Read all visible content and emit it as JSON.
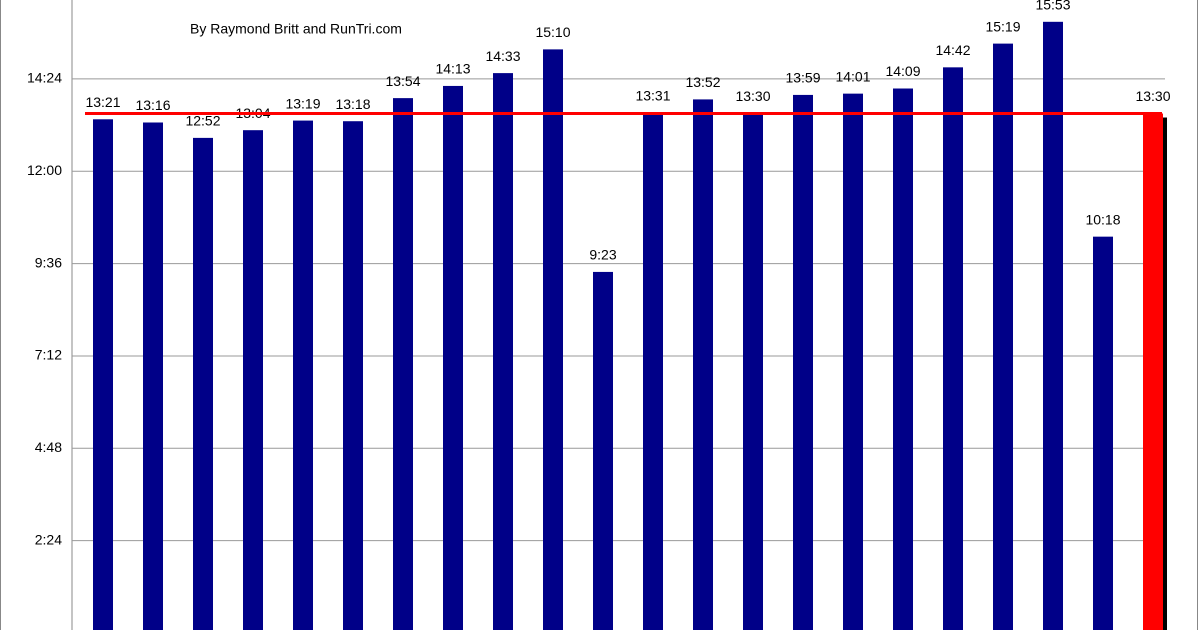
{
  "chart_data": {
    "type": "bar",
    "subtitle": "By Raymond Britt and RunTri.com",
    "categories": [
      null,
      null,
      null,
      null,
      null,
      null,
      null,
      null,
      null,
      null,
      null,
      null,
      null,
      null,
      null,
      null,
      null,
      null,
      null,
      null,
      null,
      null
    ],
    "series": [
      {
        "color": "#000088",
        "colors": [
          "#000088",
          "#000088",
          "#000088",
          "#000088",
          "#000088",
          "#000088",
          "#000088",
          "#000088",
          "#000088",
          "#000088",
          "#000088",
          "#000088",
          "#000088",
          "#000088",
          "#000088",
          "#000088",
          "#000088",
          "#000088",
          "#000088",
          "#000088",
          "#000088",
          "#ff0000"
        ],
        "values": [
          13.35,
          13.2667,
          12.8667,
          13.0667,
          13.3167,
          13.3,
          13.9,
          14.2167,
          14.55,
          15.1667,
          9.3833,
          13.5167,
          13.8667,
          13.5,
          13.9833,
          14.0167,
          14.15,
          14.7,
          15.3167,
          15.8833,
          10.3,
          13.5
        ],
        "value_labels": [
          "13:21",
          "13:16",
          "12:52",
          "13:04",
          "13:19",
          "13:18",
          "13:54",
          "14:13",
          "14:33",
          "15:10",
          "9:23",
          "13:31",
          "13:52",
          "13:30",
          "13:59",
          "14:01",
          "14:09",
          "14:42",
          "15:19",
          "15:53",
          "10:18",
          "13:30"
        ]
      }
    ],
    "reference_line": {
      "value": 13.5,
      "color": "#ff0000"
    },
    "ylim": [
      0,
      16.45
    ],
    "yticks": [
      {
        "value": 2.4,
        "label": "2:24"
      },
      {
        "value": 4.8,
        "label": "4:48"
      },
      {
        "value": 7.2,
        "label": "7:12"
      },
      {
        "value": 9.6,
        "label": "9:36"
      },
      {
        "value": 12,
        "label": "12:00"
      },
      {
        "value": 14.4,
        "label": "14:24"
      }
    ],
    "grid": true
  }
}
